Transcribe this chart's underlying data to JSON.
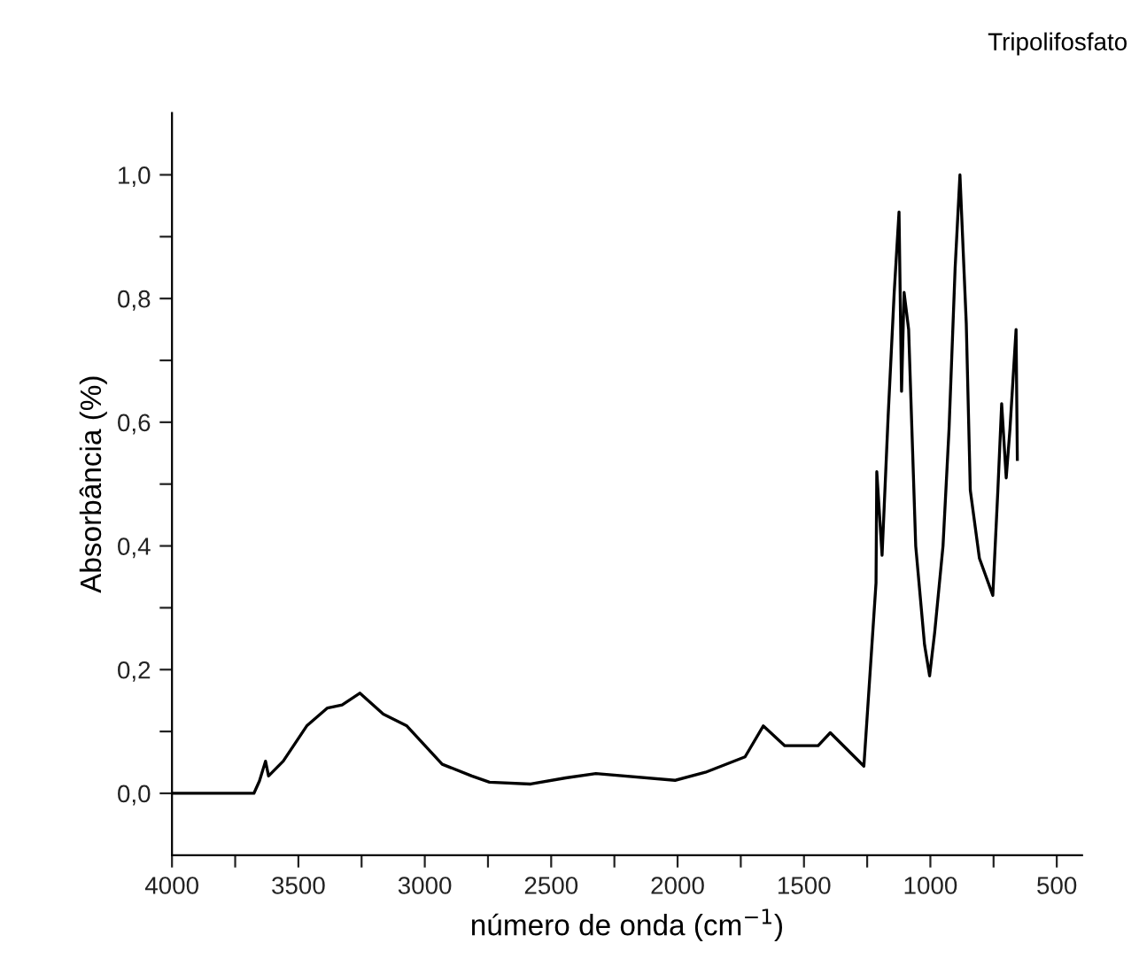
{
  "chart_data": {
    "type": "line",
    "title": "Tripolifosfato",
    "xlabel": "número de onda (cm$^{−1}$)",
    "ylabel": "Absorbância (%)",
    "x": [
      4000,
      3676,
      3654,
      3630,
      3618,
      3560,
      3467,
      3385,
      3327,
      3257,
      3164,
      3071,
      2931,
      2814,
      2744,
      2581,
      2442,
      2323,
      2010,
      1890,
      1733,
      1661,
      1576,
      1444,
      1396,
      1263,
      1215,
      1212,
      1191,
      1167,
      1143,
      1124,
      1114,
      1104,
      1086,
      1058,
      1023,
      1003,
      983,
      950,
      926,
      902,
      883,
      858,
      842,
      806,
      753,
      733,
      718,
      700,
      685,
      661,
      656
    ],
    "series": [
      {
        "color": "#000000",
        "values": [
          0.0,
          0.0,
          0.02,
          0.052,
          0.028,
          0.052,
          0.109,
          0.138,
          0.143,
          0.162,
          0.128,
          0.109,
          0.047,
          0.028,
          0.018,
          0.015,
          0.025,
          0.032,
          0.021,
          0.034,
          0.059,
          0.109,
          0.077,
          0.077,
          0.098,
          0.044,
          0.34,
          0.52,
          0.385,
          0.61,
          0.81,
          0.94,
          0.65,
          0.81,
          0.75,
          0.4,
          0.24,
          0.19,
          0.26,
          0.4,
          0.59,
          0.85,
          1.0,
          0.76,
          0.49,
          0.38,
          0.32,
          0.49,
          0.63,
          0.51,
          0.59,
          0.75,
          0.54
        ]
      }
    ],
    "xlim": [
      4000,
      400
    ],
    "ylim": [
      -0.1,
      1.1
    ],
    "xticks": [
      4000,
      {
        "value": 3750,
        "label": null
      },
      3500,
      {
        "value": 3250,
        "label": null
      },
      3000,
      {
        "value": 2750,
        "label": null
      },
      2500,
      {
        "value": 2250,
        "label": null
      },
      2000,
      {
        "value": 1750,
        "label": null
      },
      1500,
      {
        "value": 1250,
        "label": null
      },
      1000,
      {
        "value": 750,
        "label": null
      },
      500
    ],
    "yticks": [
      {
        "value": 0,
        "label": "0,0"
      },
      {
        "value": 0.1,
        "label": null
      },
      {
        "value": 0.2,
        "label": "0,2"
      },
      {
        "value": 0.3,
        "label": null
      },
      {
        "value": 0.4,
        "label": "0,4"
      },
      {
        "value": 0.5,
        "label": null
      },
      {
        "value": 0.6,
        "label": "0,6"
      },
      {
        "value": 0.7,
        "label": null
      },
      {
        "value": 0.8,
        "label": "0,8"
      },
      {
        "value": 0.9,
        "label": null
      },
      {
        "value": 1.0,
        "label": "1,0"
      }
    ],
    "grid": false,
    "legend": false,
    "marker": "none",
    "line_style": "solid"
  }
}
